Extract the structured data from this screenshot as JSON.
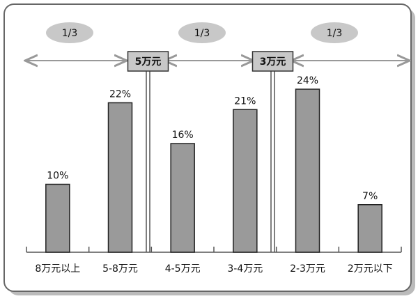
{
  "chart_data": {
    "type": "bar",
    "categories": [
      "8万元以上",
      "5-8万元",
      "4-5万元",
      "3-4万元",
      "2-3万元",
      "2万元以下"
    ],
    "values": [
      10,
      22,
      16,
      21,
      24,
      7
    ],
    "value_labels": [
      "10%",
      "22%",
      "16%",
      "21%",
      "24%",
      "7%"
    ],
    "color": "#9a9a9a",
    "fractions": [
      "1/3",
      "1/3",
      "1/3"
    ],
    "thresholds": [
      "5万元",
      "3万元"
    ]
  }
}
